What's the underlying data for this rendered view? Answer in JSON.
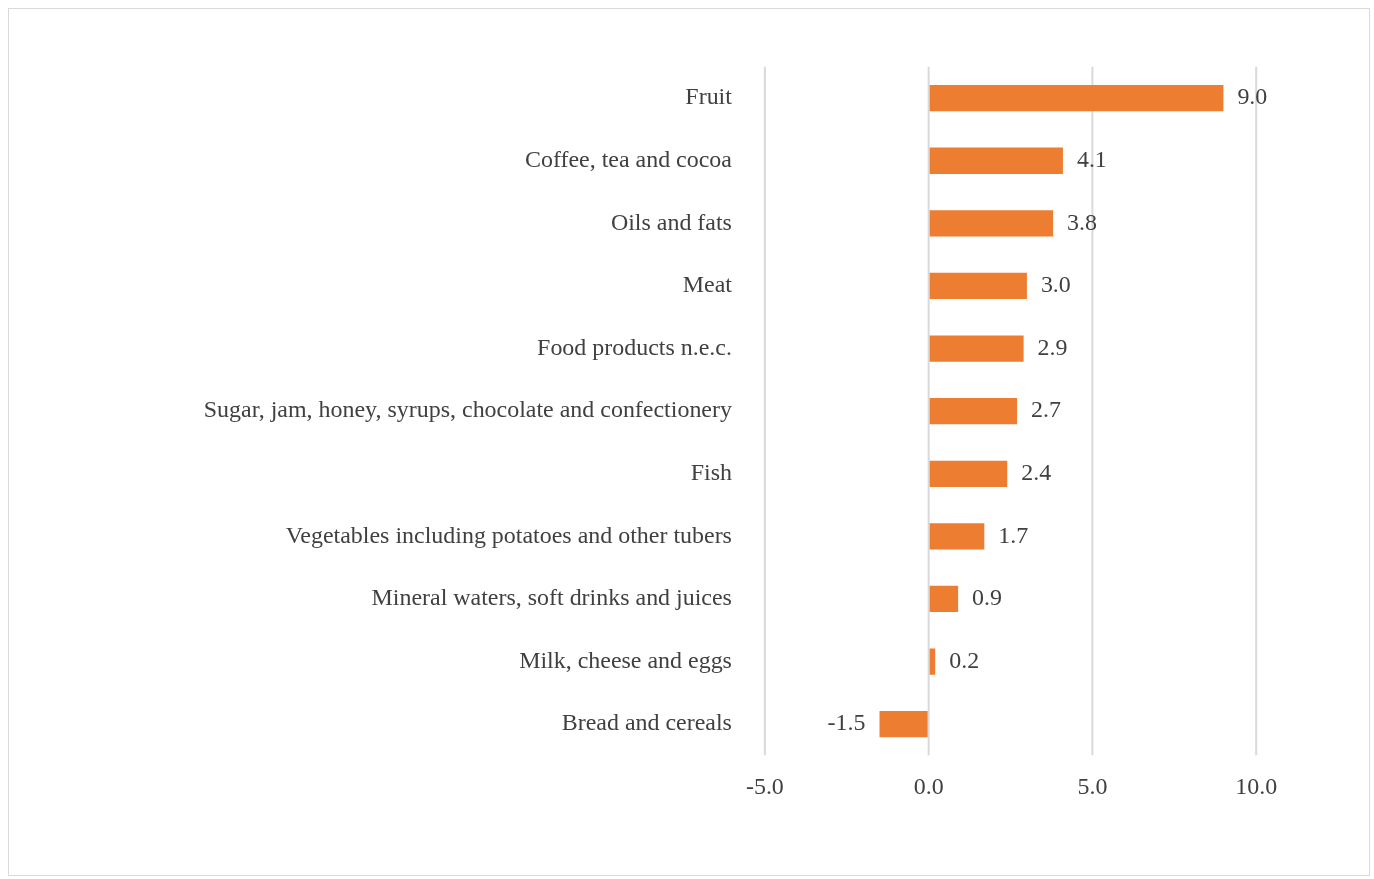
{
  "chart_data": {
    "type": "bar",
    "orientation": "horizontal",
    "categories": [
      "Fruit",
      "Coffee, tea and cocoa",
      "Oils and fats",
      "Meat",
      "Food products n.e.c.",
      "Sugar, jam, honey, syrups, chocolate and confectionery",
      "Fish",
      "Vegetables including potatoes and other tubers",
      "Mineral waters, soft drinks and juices",
      "Milk, cheese and eggs",
      "Bread and cereals"
    ],
    "values": [
      9.0,
      4.1,
      3.8,
      3.0,
      2.9,
      2.7,
      2.4,
      1.7,
      0.9,
      0.2,
      -1.5
    ],
    "color": "#ed7d31",
    "xlim": [
      -5,
      10
    ],
    "xticks": [
      {
        "value": -5,
        "label": "-5.0"
      },
      {
        "value": 0,
        "label": "0.0"
      },
      {
        "value": 5,
        "label": "5.0"
      },
      {
        "value": 10,
        "label": "10.0"
      }
    ],
    "value_labels": [
      "9.0",
      "4.1",
      "3.8",
      "3.0",
      "2.9",
      "2.7",
      "2.4",
      "1.7",
      "0.9",
      "0.2",
      "-1.5"
    ],
    "grid": "x",
    "legend": false
  }
}
